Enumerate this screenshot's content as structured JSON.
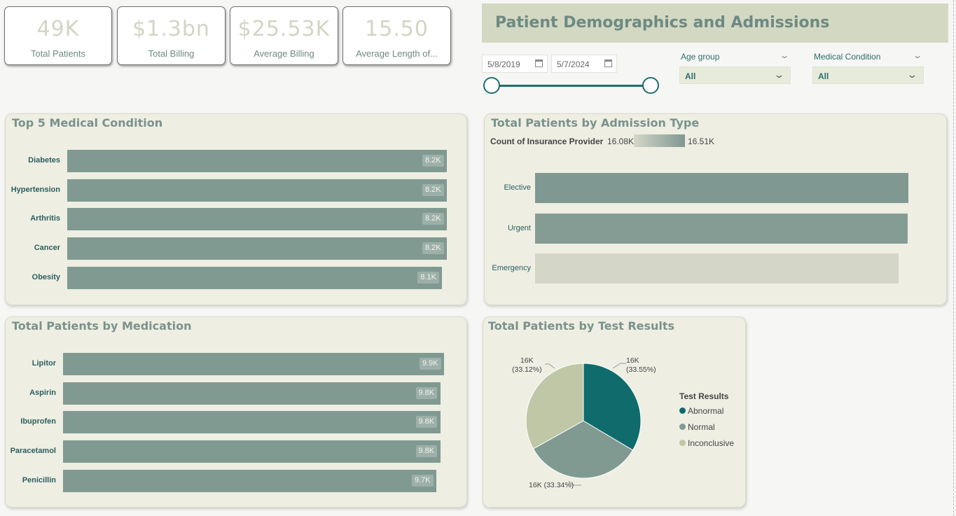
{
  "kpis": [
    {
      "value": "49K",
      "label": "Total Patients"
    },
    {
      "value": "$1.3bn",
      "label": "Total Billing"
    },
    {
      "value": "$25.53K",
      "label": "Average Billing"
    },
    {
      "value": "15.50",
      "label": "Average Length of..."
    }
  ],
  "header": {
    "title": "Patient Demographics and Admissions"
  },
  "date_range": {
    "start": "5/8/2019",
    "end": "5/7/2024"
  },
  "filters": {
    "age_group": {
      "label": "Age group",
      "value": "All"
    },
    "medical_condition": {
      "label": "Medical Condition",
      "value": "All"
    }
  },
  "colors": {
    "accent": "#1f6e6b",
    "bar": "#809a92",
    "panel": "#eeeee3",
    "title": "#d3d8c2"
  },
  "top_conditions": {
    "title": "Top 5 Medical Condition",
    "chart_data": {
      "type": "bar",
      "categories": [
        "Diabetes",
        "Hypertension",
        "Arthritis",
        "Cancer",
        "Obesity"
      ],
      "values": [
        8.2,
        8.2,
        8.2,
        8.2,
        8.1
      ],
      "labels": [
        "8.2K",
        "8.2K",
        "8.2K",
        "8.2K",
        "8.1K"
      ]
    }
  },
  "admission_type": {
    "title": "Total Patients by Admission Type",
    "legend_title": "Count of Insurance Provider",
    "legend_min": "16.08K",
    "legend_max": "16.51K",
    "chart_data": {
      "type": "bar",
      "categories": [
        "Elective",
        "Urgent",
        "Emergency"
      ],
      "values": [
        16.51,
        16.48,
        16.08
      ]
    }
  },
  "medication": {
    "title": "Total Patients by Medication",
    "chart_data": {
      "type": "bar",
      "categories": [
        "Lipitor",
        "Aspirin",
        "Ibuprofen",
        "Paracetamol",
        "Penicillin"
      ],
      "values": [
        9.9,
        9.8,
        9.8,
        9.8,
        9.7
      ],
      "labels": [
        "9.9K",
        "9.8K",
        "9.8K",
        "9.8K",
        "9.7K"
      ]
    }
  },
  "test_results": {
    "title": "Total Patients by Test Results",
    "legend_title": "Test Results",
    "chart_data": {
      "type": "pie",
      "categories": [
        "Abnormal",
        "Normal",
        "Inconclusive"
      ],
      "values": [
        33.55,
        33.34,
        33.12
      ],
      "colors": [
        "#0f6b6c",
        "#809a92",
        "#bfc7a6"
      ],
      "labels": [
        [
          "16K",
          "(33.55%)"
        ],
        [
          "16K (33.34%)"
        ],
        [
          "16K",
          "(33.12%)"
        ]
      ]
    }
  }
}
